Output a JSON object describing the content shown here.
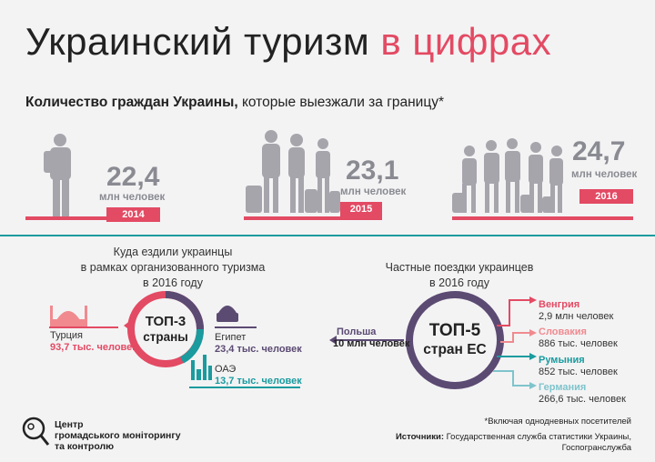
{
  "header": {
    "title_main": "Украинский туризм",
    "title_accent": "в цифрах",
    "subtitle_bold": "Количество граждан Украины,",
    "subtitle_rest": " которые выезжали за границу*"
  },
  "colors": {
    "accent": "#e34a63",
    "teal": "#1a9b9e",
    "purple": "#5b4a72",
    "gray": "#8a8b92",
    "pink": "#f08a8f",
    "light_teal": "#7fc4cc"
  },
  "chart_data": [
    {
      "type": "bar",
      "title": "Количество граждан Украины, которые выезжали за границу*",
      "categories": [
        "2014",
        "2015",
        "2016"
      ],
      "values": [
        22.4,
        23.1,
        24.7
      ],
      "value_labels": [
        "22,4",
        "23,1",
        "24,7"
      ],
      "unit": "млн человек"
    },
    {
      "type": "table",
      "title": "Куда ездили украинцы в рамках организованного туризма в 2016 году",
      "center_label": "ТОП-3 страны",
      "rows": [
        {
          "country": "Турция",
          "value": "93,7 тыс. человек"
        },
        {
          "country": "Египет",
          "value": "23,4 тыс. человек"
        },
        {
          "country": "ОАЭ",
          "value": "13,7 тыс. человек"
        }
      ]
    },
    {
      "type": "table",
      "title": "Частные поездки украинцев в 2016 году",
      "center_label": "ТОП-5 стран ЕС",
      "rows": [
        {
          "country": "Польша",
          "value": "10 млн человек"
        },
        {
          "country": "Венгрия",
          "value": "2,9 млн человек"
        },
        {
          "country": "Словакия",
          "value": "886 тыс. человек"
        },
        {
          "country": "Румыния",
          "value": "852 тыс. человек"
        },
        {
          "country": "Германия",
          "value": "266,6 тыс. человек"
        }
      ]
    }
  ],
  "section_left": {
    "title_l1": "Куда ездили украинцы",
    "title_l2": "в рамках организованного туризма",
    "title_l3": "в 2016 году",
    "circle_l1": "ТОП-3",
    "circle_l2": "страны"
  },
  "section_right": {
    "title_l1": "Частные поездки украинцев",
    "title_l2": "в 2016 году",
    "circle_l1": "ТОП-5",
    "circle_l2": "стран ЕС"
  },
  "footer": {
    "note": "*Включая однодневных посетителей",
    "sources_label": "Источники:",
    "sources_l1": " Государственная служба статистики Украины,",
    "sources_l2": "Госпогранслужба",
    "org_l1": "Центр",
    "org_l2": "громадського моніторингу",
    "org_l3": "та контролю"
  },
  "icons": [
    "traveler-icon",
    "mosque-icon",
    "sphinx-icon",
    "skyline-icon",
    "magnifier-logo-icon"
  ]
}
